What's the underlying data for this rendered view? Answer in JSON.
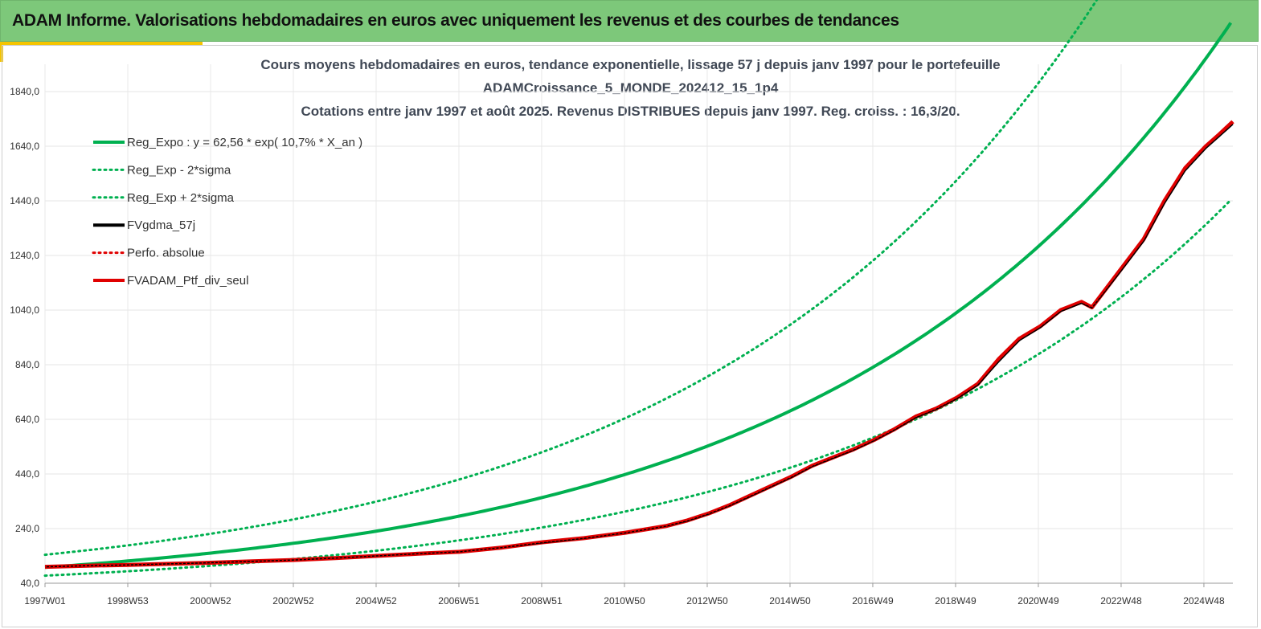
{
  "header": {
    "title": "ADAM Informe. Valorisations hebdomadaires en euros avec uniquement les revenus et des courbes de tendances"
  },
  "chart_data": {
    "type": "line",
    "title_lines": [
      "Cours moyens hebdomadaires  en euros, tendance exponentielle, lissage 57 j depuis janv 1997 pour le portefeuille",
      "ADAMCroissance_5_MONDE_202412_15_1p4",
      "Cotations  entre janv 1997 et août 2025. Revenus DISTRIBUES depuis janv 1997. Reg. croiss. : 16,3/20."
    ],
    "xlabel": "",
    "ylabel": "",
    "ylim": [
      40,
      1940
    ],
    "yticks": [
      "40,0",
      "240,0",
      "440,0",
      "640,0",
      "840,0",
      "1040,0",
      "1240,0",
      "1440,0",
      "1640,0",
      "1840,0"
    ],
    "xticks": [
      "1997W01",
      "1998W53",
      "2000W52",
      "2002W52",
      "2004W52",
      "2006W51",
      "2008W51",
      "2010W50",
      "2012W50",
      "2014W50",
      "2016W49",
      "2018W49",
      "2020W49",
      "2022W48",
      "2024W48"
    ],
    "xrange_years": [
      1997.0,
      2025.65
    ],
    "grid": true,
    "legend_position": "top-left",
    "legend": [
      {
        "label": "Reg_Expo : y = 62,56 * exp( 10,7% *  X_an )",
        "color": "#00b050",
        "style": "solid"
      },
      {
        "label": "Reg_Exp - 2*sigma",
        "color": "#00b050",
        "style": "dotted"
      },
      {
        "label": "Reg_Exp + 2*sigma",
        "color": "#00b050",
        "style": "dotted"
      },
      {
        "label": "FVgdma_57j",
        "color": "#000000",
        "style": "solid"
      },
      {
        "label": "Perfo. absolue",
        "color": "#e00000",
        "style": "dotted"
      },
      {
        "label": "FVADAM_Ptf_div_seul",
        "color": "#e00000",
        "style": "solid"
      }
    ],
    "regression": {
      "a": 62.56,
      "rate": 0.107,
      "lower_factor": 0.69,
      "upper_factor": 1.47
    },
    "series": [
      {
        "name": "FVADAM_Ptf_div_seul",
        "x": [
          1997.0,
          1998.0,
          1999.0,
          2000.0,
          2001.0,
          2002.0,
          2003.0,
          2004.0,
          2005.0,
          2006.0,
          2007.0,
          2008.0,
          2009.0,
          2010.0,
          2011.0,
          2012.0,
          2012.5,
          2013.0,
          2013.5,
          2014.0,
          2014.5,
          2015.0,
          2015.5,
          2016.0,
          2016.5,
          2017.0,
          2017.5,
          2018.0,
          2018.5,
          2019.0,
          2019.5,
          2020.0,
          2020.5,
          2021.0,
          2021.5,
          2022.0,
          2022.25,
          2022.5,
          2023.0,
          2023.5,
          2024.0,
          2024.5,
          2025.0,
          2025.3,
          2025.65
        ],
        "y": [
          100,
          104,
          107,
          111,
          115,
          120,
          125,
          132,
          140,
          148,
          155,
          170,
          190,
          205,
          225,
          250,
          270,
          295,
          325,
          360,
          395,
          430,
          470,
          500,
          530,
          565,
          605,
          650,
          680,
          720,
          770,
          860,
          935,
          980,
          1040,
          1070,
          1050,
          1100,
          1200,
          1300,
          1440,
          1560,
          1640,
          1680,
          1730
        ]
      },
      {
        "name": "FVgdma_57j",
        "x": [
          1997.0,
          1998.0,
          1999.0,
          2000.0,
          2001.0,
          2002.0,
          2003.0,
          2004.0,
          2005.0,
          2006.0,
          2007.0,
          2008.0,
          2009.0,
          2010.0,
          2011.0,
          2012.0,
          2012.5,
          2013.0,
          2013.5,
          2014.0,
          2014.5,
          2015.0,
          2015.5,
          2016.0,
          2016.5,
          2017.0,
          2017.5,
          2018.0,
          2018.5,
          2019.0,
          2019.5,
          2020.0,
          2020.5,
          2021.0,
          2021.5,
          2022.0,
          2022.25,
          2022.5,
          2023.0,
          2023.5,
          2024.0,
          2024.5,
          2025.0,
          2025.3,
          2025.65
        ],
        "y": [
          100,
          104,
          107,
          111,
          115,
          120,
          125,
          132,
          140,
          148,
          155,
          170,
          188,
          204,
          224,
          249,
          268,
          293,
          323,
          357,
          392,
          427,
          467,
          497,
          527,
          562,
          602,
          646,
          677,
          716,
          765,
          850,
          928,
          975,
          1035,
          1065,
          1048,
          1095,
          1192,
          1292,
          1430,
          1550,
          1632,
          1672,
          1720
        ]
      }
    ]
  }
}
